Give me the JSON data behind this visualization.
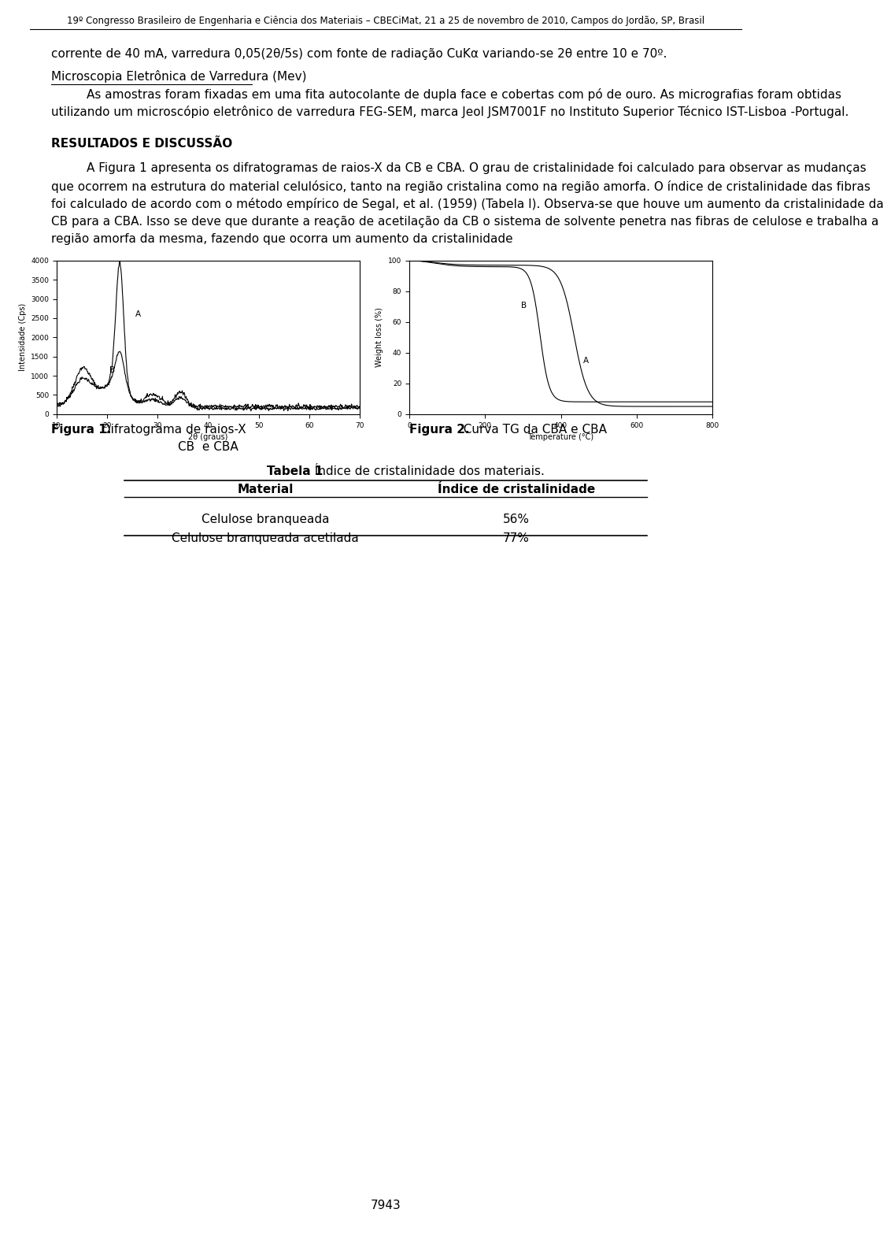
{
  "header": "19º Congresso Brasileiro de Engenharia e Ciência dos Materiais – CBECiMat, 21 a 25 de novembro de 2010, Campos do Jordão, SP, Brasil",
  "para1": "corrente de 40 mA, varredura 0,05(2θ/5s) com fonte de radiação CuKα variando-se 2θ entre 10 e 70º.",
  "subtitle1": "Microscopia Eletrônica de Varredura (Mev)",
  "para2": "As amostras foram fixadas em uma fita autocolante de dupla face e cobertas com pó de ouro. As micrografias foram obtidas utilizando um microscópio eletrônico de varredura FEG-SEM, marca Jeol JSM7001F no Instituto Superior Técnico IST-Lisboa -Portugal.",
  "section_title": "RESULTADOS E DISCUSSÃO",
  "para3": "A Figura 1 apresenta os difratogramas de raios-X da CB e CBA. O grau de cristalinidade foi calculado para observar as mudanças que ocorrem na estrutura do material celulósico, tanto na região cristalina como na região amorfa. O índice de cristalinidade das fibras foi calculado de acordo com o método empírico de Segal, et al. (1959) (Tabela I). Observa-se que houve um aumento da cristalinidade da CB para a CBA. Isso se deve que durante a reação de acetilação da CB o sistema de solvente penetra nas fibras de celulose e trabalha a região amorfa da mesma, fazendo que ocorra um aumento da cristalinidade",
  "fig1_caption_bold": "Figura 1.",
  "fig1_caption_normal": " Difratograma de raios-X",
  "fig1_caption_line2": "CB  e CBA",
  "fig2_caption_bold": "Figura 2.",
  "fig2_caption_normal": "  Curva TG da CBA e CBA",
  "table_title_bold": "Tabela 1",
  "table_title_normal": ". Índice de cristalinidade dos materiais.",
  "table_header": [
    "Material",
    "Índice de cristalinidade"
  ],
  "table_rows": [
    [
      "Celulose branqueada",
      "56%"
    ],
    [
      "Celulose branqueada acetilada",
      "77%"
    ]
  ],
  "page_number": "7943",
  "background_color": "#ffffff",
  "text_color": "#000000",
  "font_size_header": 8.5,
  "font_size_body": 11,
  "font_size_caption": 11,
  "font_size_table": 11
}
